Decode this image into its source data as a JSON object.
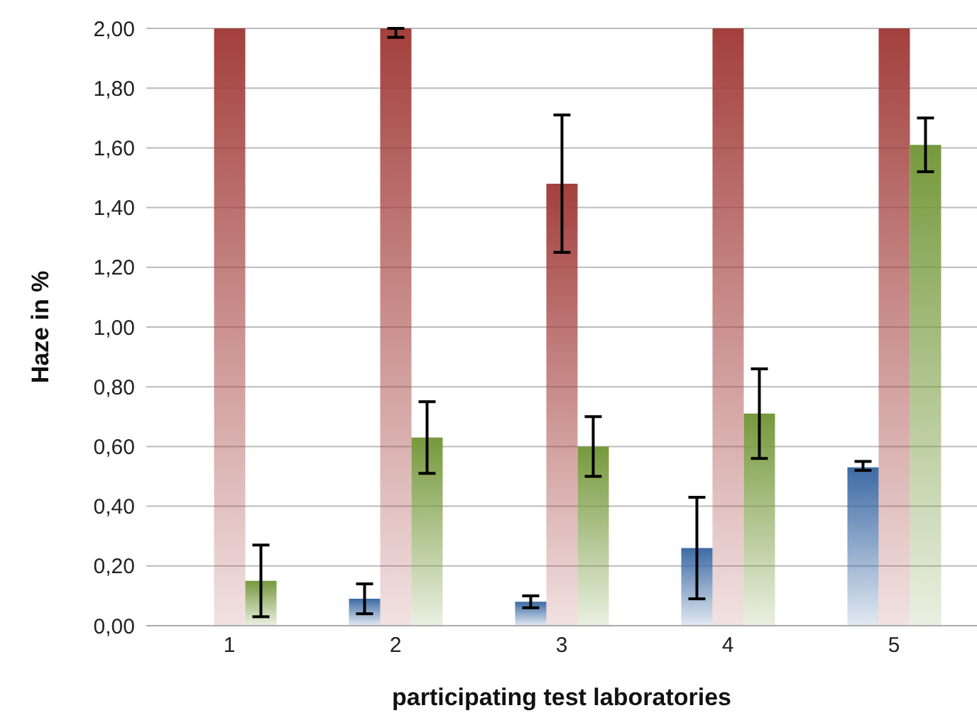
{
  "chart_data": {
    "type": "bar",
    "ylabel": "Haze in %",
    "xlabel": "participating test laboratories",
    "categories": [
      "1",
      "2",
      "3",
      "4",
      "5"
    ],
    "series": [
      {
        "color": "#3d6ba5",
        "values": [
          0,
          0.09,
          0.08,
          0.26,
          0.53
        ],
        "errors": [
          null,
          [
            0.04,
            0.14
          ],
          [
            0.06,
            0.1
          ],
          [
            0.09,
            0.43
          ],
          [
            0.52,
            0.55
          ]
        ]
      },
      {
        "color": "#a3403d",
        "values": [
          2,
          2,
          1.48,
          2,
          2
        ],
        "errors": [
          null,
          [
            1.97,
            2
          ],
          [
            1.25,
            1.71
          ],
          null,
          null
        ]
      },
      {
        "color": "#76993c",
        "values": [
          0.15,
          0.63,
          0.6,
          0.71,
          1.61
        ],
        "errors": [
          [
            0.03,
            0.27
          ],
          [
            0.51,
            0.75
          ],
          [
            0.5,
            0.7
          ],
          [
            0.56,
            0.86
          ],
          [
            1.52,
            1.7
          ]
        ]
      }
    ],
    "ylim": [
      0,
      2
    ],
    "yticks": [
      {
        "value": 0,
        "label": "0,00"
      },
      {
        "value": 0.2,
        "label": "0,20"
      },
      {
        "value": 0.4,
        "label": "0,40"
      },
      {
        "value": 0.6,
        "label": "0,60"
      },
      {
        "value": 0.8,
        "label": "0,80"
      },
      {
        "value": 1,
        "label": "1,00"
      },
      {
        "value": 1.2,
        "label": "1,20"
      },
      {
        "value": 1.4,
        "label": "1,40"
      },
      {
        "value": 1.6,
        "label": "1,60"
      },
      {
        "value": 1.8,
        "label": "1,80"
      },
      {
        "value": 2,
        "label": "2,00"
      }
    ],
    "grid": "y"
  }
}
